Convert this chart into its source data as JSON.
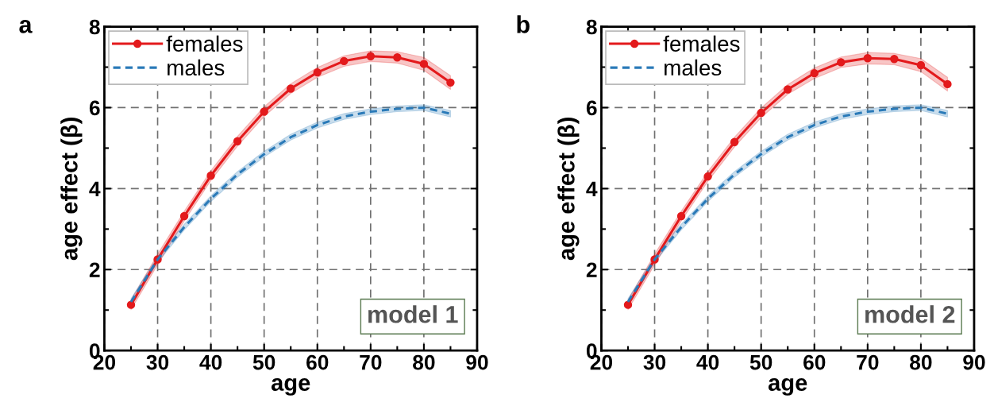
{
  "chart_data": [
    {
      "type": "line",
      "xlabel": "age",
      "ylabel": "age effect (β)",
      "annotations": [
        "a",
        "model 1"
      ],
      "x": [
        25,
        30,
        35,
        40,
        45,
        50,
        55,
        60,
        65,
        70,
        75,
        80,
        85
      ],
      "xlim": [
        20,
        90
      ],
      "ylim": [
        0,
        8
      ],
      "xticks": [
        20,
        {
          "value": 25,
          "label": null
        },
        30,
        {
          "value": 35,
          "label": null
        },
        40,
        {
          "value": 45,
          "label": null
        },
        50,
        {
          "value": 55,
          "label": null
        },
        60,
        {
          "value": 65,
          "label": null
        },
        70,
        {
          "value": 75,
          "label": null
        },
        80,
        {
          "value": 85,
          "label": null
        },
        90
      ],
      "yticks": [
        0,
        {
          "value": 1,
          "label": null
        },
        2,
        {
          "value": 3,
          "label": null
        },
        4,
        {
          "value": 5,
          "label": null
        },
        6,
        {
          "value": 7,
          "label": null
        },
        8
      ],
      "grid": true,
      "legend": "top left",
      "series": [
        {
          "name": "females",
          "color": "#e31a1c",
          "marker": "circle",
          "line_style": "solid",
          "values": [
            1.13,
            2.25,
            3.32,
            4.32,
            5.17,
            5.9,
            6.47,
            6.87,
            7.15,
            7.27,
            7.24,
            7.08,
            6.62
          ],
          "lower": [
            1.01,
            2.12,
            3.2,
            4.2,
            5.05,
            5.78,
            6.35,
            6.75,
            7.02,
            7.14,
            7.1,
            6.92,
            6.45
          ],
          "upper": [
            1.25,
            2.38,
            3.44,
            4.44,
            5.29,
            6.02,
            6.59,
            6.99,
            7.28,
            7.4,
            7.38,
            7.24,
            6.79
          ]
        },
        {
          "name": "males",
          "color": "#2a7ab8",
          "marker": "none",
          "line_style": "dashed",
          "values": [
            1.2,
            2.25,
            3.05,
            3.75,
            4.35,
            4.85,
            5.27,
            5.57,
            5.78,
            5.9,
            5.97,
            6.0,
            5.85
          ],
          "lower": [
            1.12,
            2.18,
            2.98,
            3.68,
            4.28,
            4.78,
            5.2,
            5.5,
            5.71,
            5.83,
            5.9,
            5.93,
            5.77
          ],
          "upper": [
            1.28,
            2.32,
            3.12,
            3.82,
            4.42,
            4.92,
            5.34,
            5.64,
            5.85,
            5.97,
            6.04,
            6.07,
            5.93
          ]
        }
      ]
    },
    {
      "type": "line",
      "xlabel": "age",
      "ylabel": "age effect (β)",
      "annotations": [
        "b",
        "model 2"
      ],
      "x": [
        25,
        30,
        35,
        40,
        45,
        50,
        55,
        60,
        65,
        70,
        75,
        80,
        85
      ],
      "xlim": [
        20,
        90
      ],
      "ylim": [
        0,
        8
      ],
      "xticks": [
        20,
        {
          "value": 25,
          "label": null
        },
        30,
        {
          "value": 35,
          "label": null
        },
        40,
        {
          "value": 45,
          "label": null
        },
        50,
        {
          "value": 55,
          "label": null
        },
        60,
        {
          "value": 65,
          "label": null
        },
        70,
        {
          "value": 75,
          "label": null
        },
        80,
        {
          "value": 85,
          "label": null
        },
        90
      ],
      "yticks": [
        0,
        {
          "value": 1,
          "label": null
        },
        2,
        {
          "value": 3,
          "label": null
        },
        4,
        {
          "value": 5,
          "label": null
        },
        6,
        {
          "value": 7,
          "label": null
        },
        8
      ],
      "grid": true,
      "legend": "top left",
      "series": [
        {
          "name": "females",
          "color": "#e31a1c",
          "marker": "circle",
          "line_style": "solid",
          "values": [
            1.13,
            2.25,
            3.32,
            4.3,
            5.15,
            5.87,
            6.45,
            6.85,
            7.12,
            7.22,
            7.2,
            7.05,
            6.58
          ],
          "lower": [
            1.01,
            2.12,
            3.2,
            4.18,
            5.03,
            5.75,
            6.33,
            6.72,
            6.99,
            7.08,
            7.06,
            6.89,
            6.41
          ],
          "upper": [
            1.25,
            2.38,
            3.44,
            4.42,
            5.27,
            5.99,
            6.57,
            6.98,
            7.25,
            7.36,
            7.34,
            7.21,
            6.75
          ]
        },
        {
          "name": "males",
          "color": "#2a7ab8",
          "marker": "none",
          "line_style": "dashed",
          "values": [
            1.2,
            2.25,
            3.05,
            3.75,
            4.35,
            4.85,
            5.27,
            5.57,
            5.78,
            5.9,
            5.97,
            6.0,
            5.85
          ],
          "lower": [
            1.12,
            2.18,
            2.98,
            3.68,
            4.28,
            4.78,
            5.2,
            5.5,
            5.71,
            5.83,
            5.9,
            5.93,
            5.77
          ],
          "upper": [
            1.28,
            2.32,
            3.12,
            3.82,
            4.42,
            4.92,
            5.34,
            5.64,
            5.85,
            5.97,
            6.04,
            6.07,
            5.93
          ]
        }
      ]
    }
  ]
}
